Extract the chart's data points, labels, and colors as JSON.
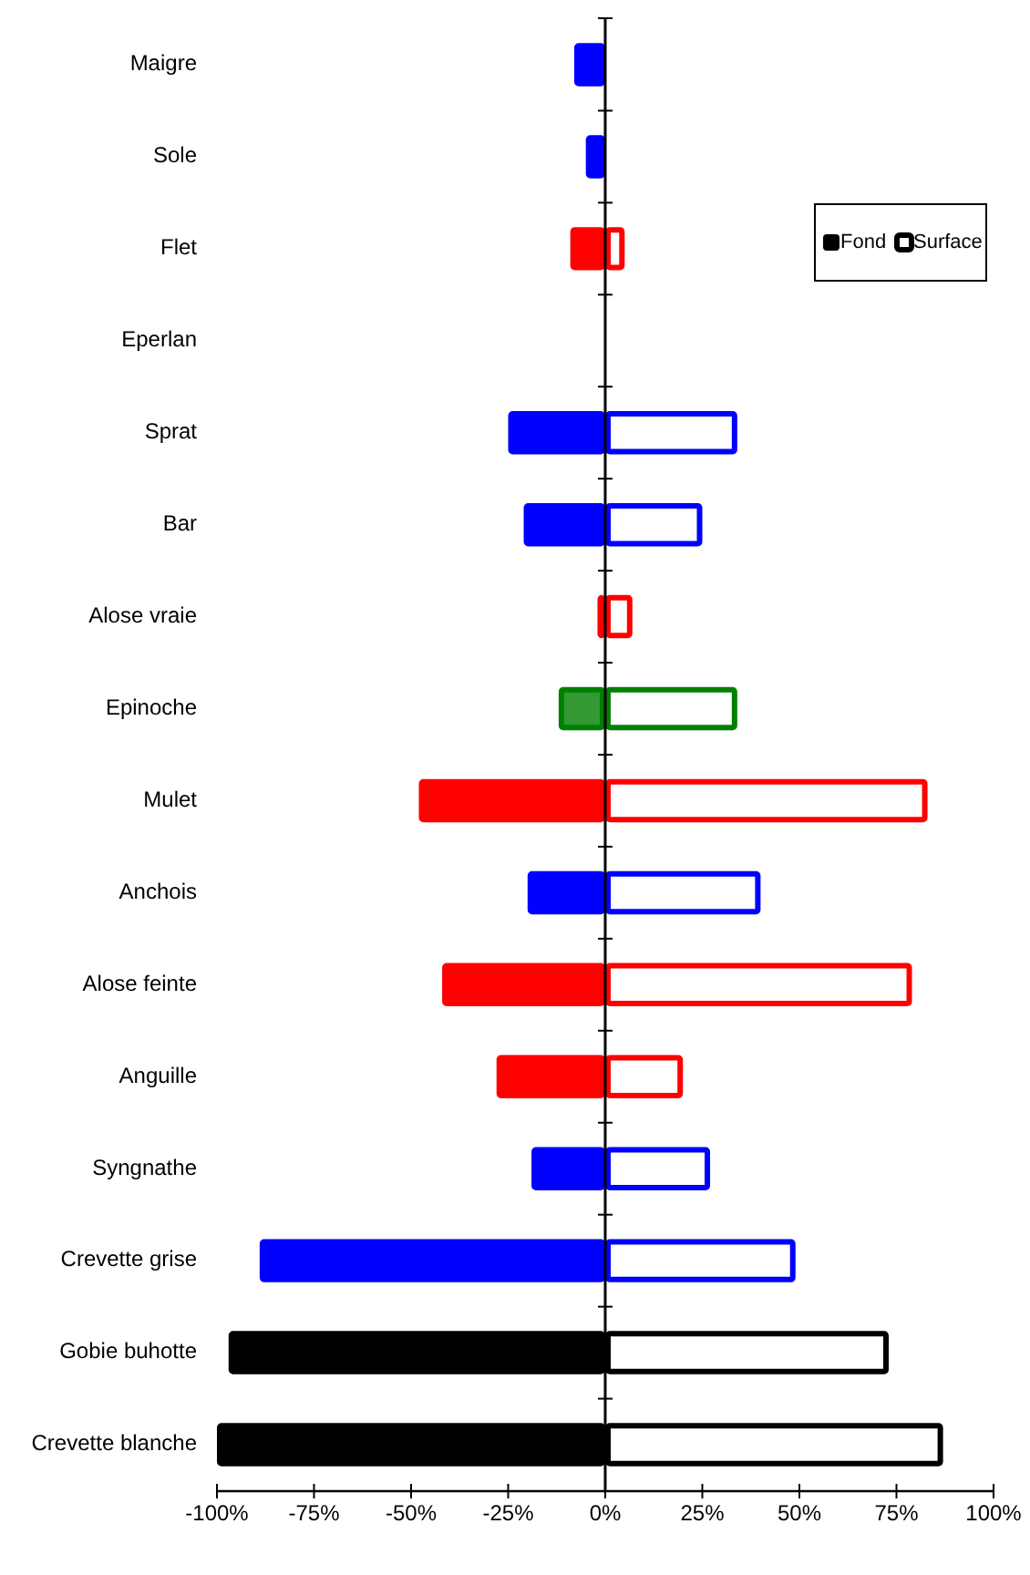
{
  "chart_data": {
    "type": "bar",
    "orientation": "horizontal",
    "stacked": true,
    "categories": [
      "Maigre",
      "Sole",
      "Flet",
      "Eperlan",
      "Sprat",
      "Bar",
      "Alose vraie",
      "Epinoche",
      "Mulet",
      "Anchois",
      "Alose feinte",
      "Anguille",
      "Syngnathe",
      "Crevette grise",
      "Gobie buhotte",
      "Crevette blanche"
    ],
    "series": [
      {
        "name": "Fond",
        "color": "#000000",
        "colors": [
          "#0000ff",
          "#0000ff",
          "#ff0000",
          null,
          "#0000ff",
          "#0000ff",
          "#ff0000",
          "#339933",
          "#ff0000",
          "#0000ff",
          "#ff0000",
          "#ff0000",
          "#0000ff",
          "#0000ff",
          "#000000",
          "#000000"
        ],
        "values": [
          -8,
          -5,
          -9,
          null,
          -25,
          -21,
          -2,
          -12,
          -48,
          -20,
          -42,
          -28,
          -19,
          -89,
          -97,
          -100
        ]
      },
      {
        "name": "Surface",
        "color": "#000000",
        "colors": [
          null,
          null,
          "#ff0000",
          null,
          "#0000ff",
          "#0000ff",
          "#ff0000",
          "#008000",
          "#ff0000",
          "#0000ff",
          "#ff0000",
          "#ff0000",
          "#0000ff",
          "#0000ff",
          "#000000",
          "#000000"
        ],
        "values": [
          null,
          null,
          5,
          null,
          34,
          25,
          7,
          34,
          83,
          40,
          79,
          20,
          27,
          49,
          73,
          87
        ]
      }
    ],
    "xlim": [
      -100,
      100
    ],
    "xticks": [
      {
        "value": -100,
        "label": "-100%"
      },
      {
        "value": -75,
        "label": "-75%"
      },
      {
        "value": -50,
        "label": "-50%"
      },
      {
        "value": -25,
        "label": "-25%"
      },
      {
        "value": 0,
        "label": "0%"
      },
      {
        "value": 25,
        "label": "25%"
      },
      {
        "value": 50,
        "label": "50%"
      },
      {
        "value": 75,
        "label": "75%"
      },
      {
        "value": 100,
        "label": "100%"
      }
    ],
    "legend": "top right"
  }
}
